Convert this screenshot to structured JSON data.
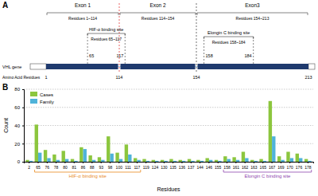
{
  "diagram": {
    "panel_label": "A",
    "gene_label": "VHL gene",
    "axis_label": "Amino Acid Residues",
    "exons": [
      {
        "label": "Exon 1",
        "residues": "Residues 1~114",
        "start": 1,
        "end": 114
      },
      {
        "label": "Exon 2",
        "residues": "Residues 114~154",
        "start": 114,
        "end": 154
      },
      {
        "label": "Exon3",
        "residues": "Residues 154~213",
        "start": 154,
        "end": 213
      }
    ],
    "sites": [
      {
        "label": "HIF-α binding site",
        "residues": "Residues 65~117",
        "start": 65,
        "end": 117
      },
      {
        "label": "Elongin C binding site",
        "residues": "Residues 158~184",
        "start": 158,
        "end": 184
      }
    ],
    "boundary_ticks": [
      1,
      114,
      154,
      213
    ]
  },
  "chart_data": {
    "type": "bar",
    "panel_label": "B",
    "x_label": "Residues",
    "y_label": "Count",
    "categories": [
      "2",
      "65",
      "76",
      "78",
      "80",
      "81",
      "86",
      "88",
      "93",
      "98",
      "100",
      "111",
      "117",
      "119",
      "124",
      "130",
      "135",
      "136",
      "137",
      "144",
      "146",
      "155",
      "158",
      "161",
      "162",
      "163",
      "165",
      "167",
      "169",
      "170",
      "176",
      "178"
    ],
    "series": [
      {
        "name": "Cases",
        "color": "#8cc63e",
        "values": [
          2,
          41,
          13,
          8,
          12,
          3,
          16,
          7,
          5,
          28,
          10,
          19,
          4,
          3,
          2,
          2,
          3,
          2,
          3,
          2,
          4,
          2,
          6,
          5,
          11,
          2,
          3,
          67,
          6,
          11,
          9,
          3
        ]
      },
      {
        "name": "Family",
        "color": "#4fb3d9",
        "values": [
          1,
          10,
          4,
          2,
          3,
          1,
          14,
          2,
          2,
          9,
          3,
          8,
          2,
          1,
          1,
          1,
          1,
          1,
          1,
          1,
          2,
          1,
          3,
          2,
          4,
          1,
          1,
          28,
          2,
          4,
          4,
          1
        ]
      }
    ],
    "ylim": [
      0,
      80
    ],
    "yticks": [
      0,
      20,
      40,
      60,
      80
    ],
    "grid": true,
    "legend": "upper left",
    "annotations": [
      {
        "text": "HIF-α binding site",
        "from": "65",
        "to": "117",
        "color": "#e8891d"
      },
      {
        "text": "Elongin C binding site",
        "from": "158",
        "to": "178",
        "color": "#8e44ad"
      }
    ]
  }
}
